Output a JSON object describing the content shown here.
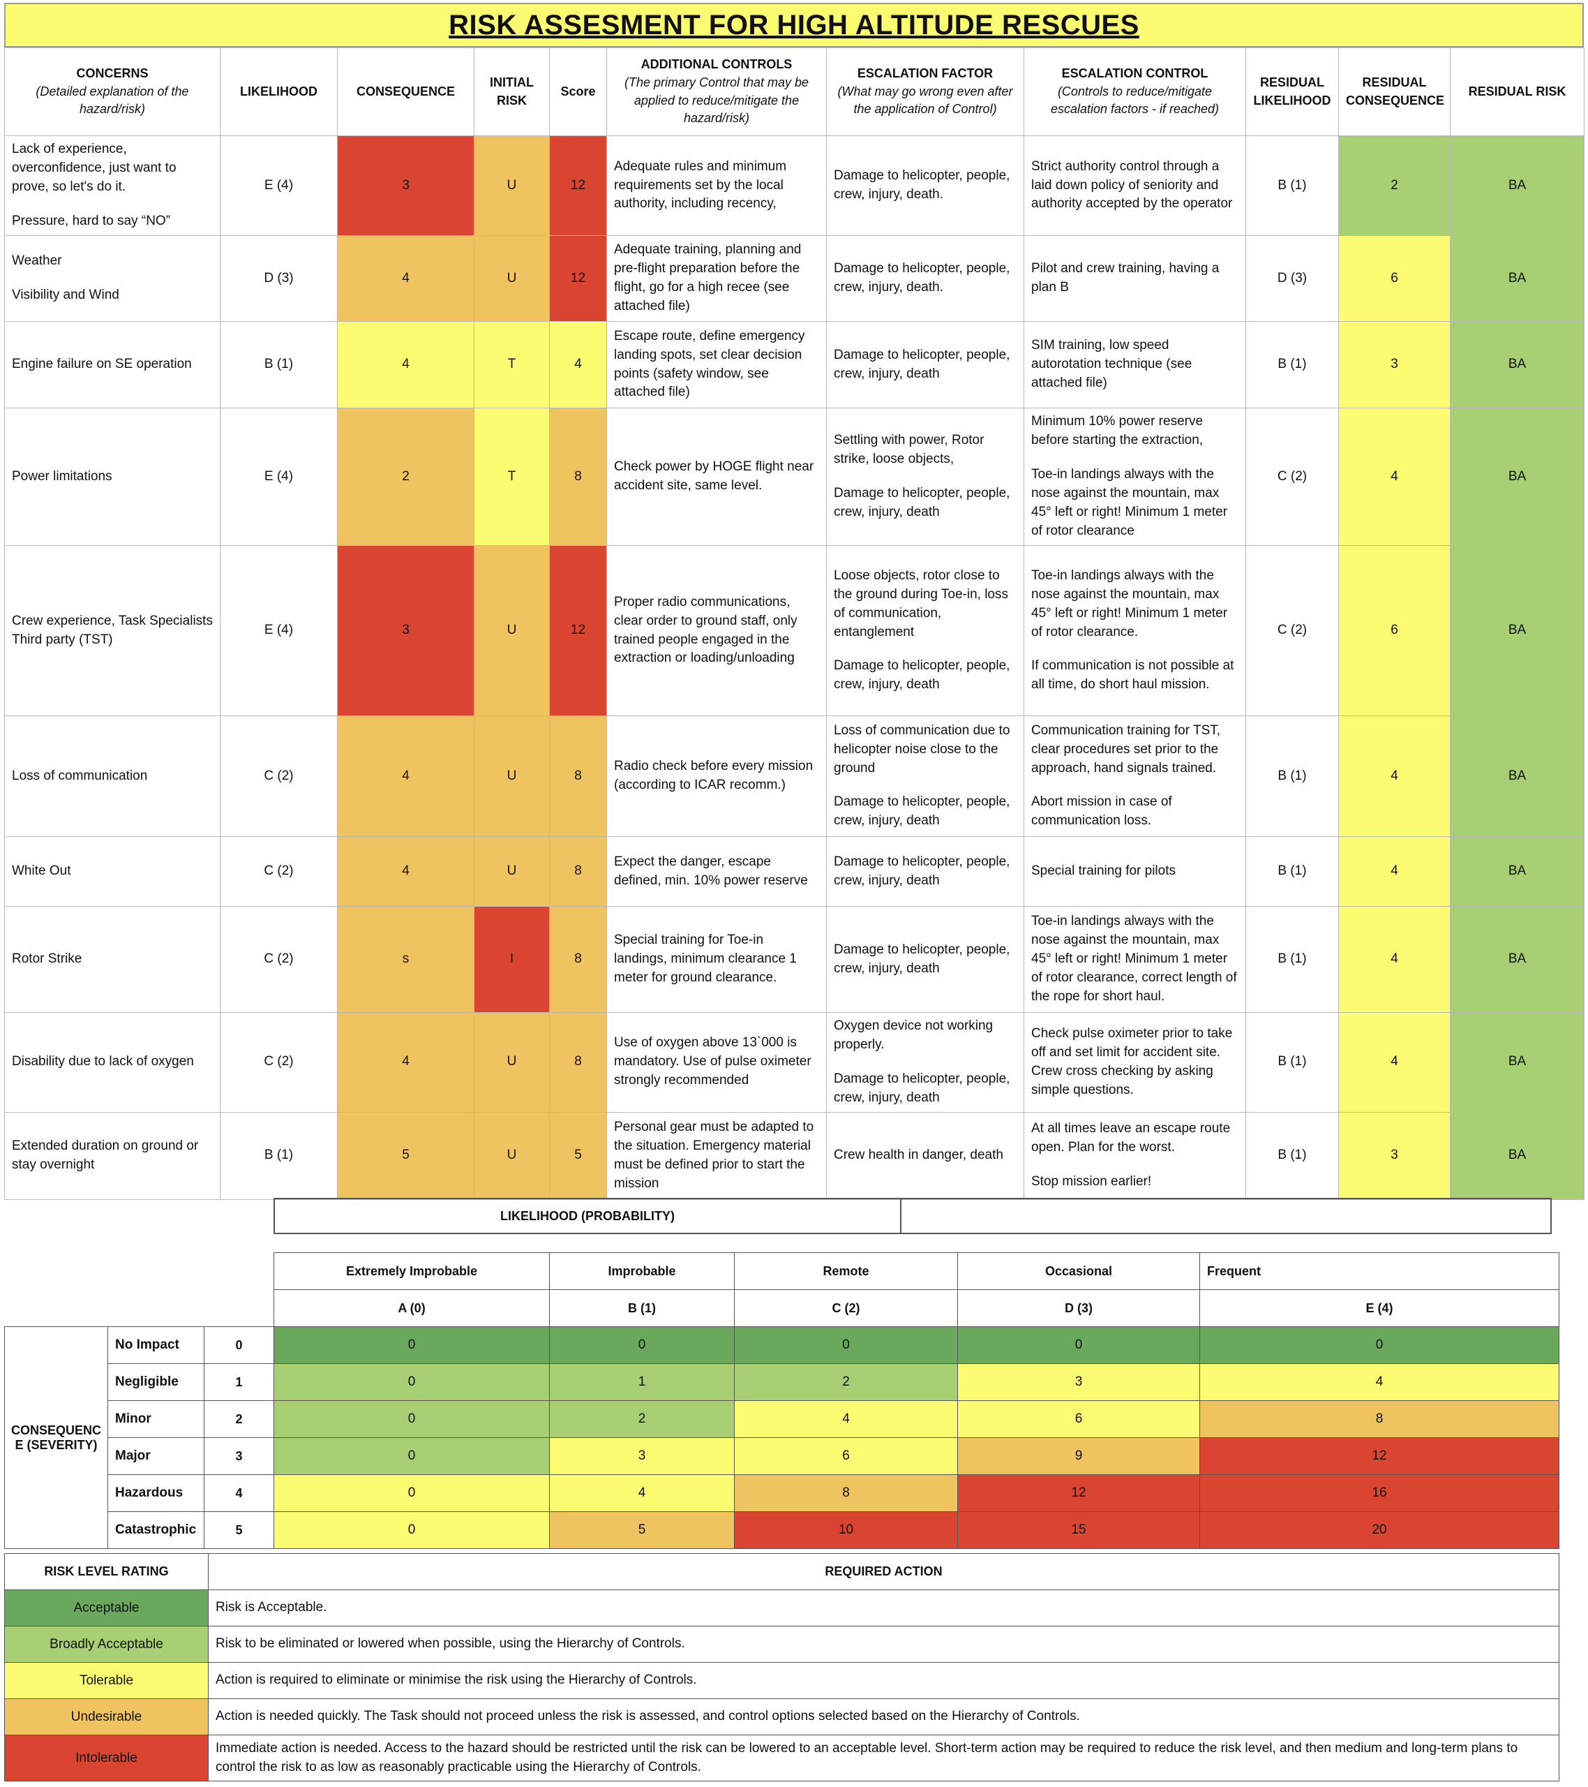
{
  "title": "RISK ASSESMENT FOR HIGH ALTITUDE RESCUES",
  "colors": {
    "intolerable": "#d94530",
    "undesirable": "#efc35f",
    "tolerable": "#fcfc73",
    "broadly_acceptable": "#a8cf73",
    "acceptable": "#6aa95d"
  },
  "headers": {
    "concerns": "CONCERNS",
    "concerns_sub": "(Detailed explanation of the hazard/risk)",
    "likelihood": "LIKELIHOOD",
    "consequence": "CONSEQUENCE",
    "initial_risk": "INITIAL RISK",
    "score": "Score",
    "additional_controls": "ADDITIONAL CONTROLS",
    "additional_controls_sub": "(The primary Control that may be applied to reduce/mitigate the hazard/risk)",
    "escalation_factor": "ESCALATION FACTOR",
    "escalation_factor_sub": "(What may go wrong even after the application of Control)",
    "escalation_control": "ESCALATION CONTROL",
    "escalation_control_sub": "(Controls to reduce/mitigate escalation factors - if reached)",
    "residual_likelihood": "RESIDUAL LIKELIHOOD",
    "residual_consequence": "RESIDUAL CONSEQUENCE",
    "residual_risk": "RESIDUAL RISK"
  },
  "rows": [
    {
      "concern": [
        "Lack of experience, overconfidence, just want to prove, so let's do it.",
        "Pressure, hard to say “NO”"
      ],
      "likelihood": "E (4)",
      "consequence": "3",
      "initial_risk": "U",
      "score": "12",
      "additional_controls": [
        "Adequate rules and minimum requirements set by the local authority, including recency,"
      ],
      "escalation_factor": [
        "Damage to helicopter, people, crew, injury, death."
      ],
      "escalation_control": [
        "Strict authority control through a laid down policy of seniority and authority accepted by the operator"
      ],
      "residual_likelihood": "B (1)",
      "residual_consequence": "2",
      "residual_risk": "BA",
      "colors": {
        "consequence": "red",
        "initial": "orange",
        "score": "red",
        "res_cons": "lgreen",
        "res_risk": "lgreen"
      }
    },
    {
      "concern": [
        "Weather",
        "Visibility and Wind"
      ],
      "likelihood": "D (3)",
      "consequence": "4",
      "initial_risk": "U",
      "score": "12",
      "additional_controls": [
        "Adequate training, planning and pre-flight preparation before the flight, go for a high recee (see attached file)"
      ],
      "escalation_factor": [
        "Damage to helicopter, people, crew, injury, death."
      ],
      "escalation_control": [
        "Pilot and crew training, having a plan B"
      ],
      "residual_likelihood": "D (3)",
      "residual_consequence": "6",
      "residual_risk": "BA",
      "colors": {
        "consequence": "orange",
        "initial": "orange",
        "score": "red",
        "res_cons": "yellow",
        "res_risk": "lgreen"
      }
    },
    {
      "concern": [
        "Engine failure on SE operation"
      ],
      "likelihood": "B (1)",
      "consequence": "4",
      "initial_risk": "T",
      "score": "4",
      "additional_controls": [
        "Escape route, define emergency landing spots, set clear decision points (safety window, see attached file)"
      ],
      "escalation_factor": [
        "Damage to helicopter, people, crew, injury, death"
      ],
      "escalation_control": [
        "SIM training, low speed autorotation technique (see attached file)"
      ],
      "residual_likelihood": "B (1)",
      "residual_consequence": "3",
      "residual_risk": "BA",
      "colors": {
        "consequence": "yellow",
        "initial": "yellow",
        "score": "yellow",
        "res_cons": "yellow",
        "res_risk": "lgreen"
      }
    },
    {
      "concern": [
        "Power limitations"
      ],
      "likelihood": "E (4)",
      "consequence": "2",
      "initial_risk": "T",
      "score": "8",
      "additional_controls": [
        "Check power by HOGE flight near accident site, same level."
      ],
      "escalation_factor": [
        "Settling with power, Rotor strike, loose objects,",
        "Damage to helicopter, people, crew, injury, death"
      ],
      "escalation_control": [
        "Minimum 10% power reserve before starting the extraction,",
        "Toe-in landings always with the nose against the mountain, max 45° left or right! Minimum 1 meter of rotor clearance"
      ],
      "residual_likelihood": "C (2)",
      "residual_consequence": "4",
      "residual_risk": "BA",
      "colors": {
        "consequence": "orange",
        "initial": "yellow",
        "score": "orange",
        "res_cons": "yellow",
        "res_risk": "lgreen"
      }
    },
    {
      "concern": [
        "Crew experience, Task Specialists Third party (TST)"
      ],
      "likelihood": "E (4)",
      "consequence": "3",
      "initial_risk": "U",
      "score": "12",
      "additional_controls": [
        "Proper radio communications, clear order to ground staff, only trained people engaged in the extraction or loading/unloading"
      ],
      "escalation_factor": [
        "Loose objects, rotor close to the ground during Toe-in, loss of communication, entanglement",
        "Damage to helicopter, people, crew, injury, death"
      ],
      "escalation_control": [
        "Toe-in landings always with the nose against the mountain, max 45° left or right! Minimum 1 meter of rotor clearance.",
        "If communication is not possible at all time, do short haul mission."
      ],
      "residual_likelihood": "C (2)",
      "residual_consequence": "6",
      "residual_risk": "BA",
      "colors": {
        "consequence": "red",
        "initial": "orange",
        "score": "red",
        "res_cons": "yellow",
        "res_risk": "lgreen"
      }
    },
    {
      "concern": [
        "Loss of communication"
      ],
      "likelihood": "C (2)",
      "consequence": "4",
      "initial_risk": "U",
      "score": "8",
      "additional_controls": [
        "Radio check before every mission (according to ICAR recomm.)"
      ],
      "escalation_factor": [
        "Loss of communication due to helicopter noise close to the ground",
        "Damage to helicopter, people, crew, injury, death"
      ],
      "escalation_control": [
        "Communication training for TST, clear procedures set prior to the approach, hand signals trained.",
        "Abort  mission in case of communication loss."
      ],
      "residual_likelihood": "B (1)",
      "residual_consequence": "4",
      "residual_risk": "BA",
      "colors": {
        "consequence": "orange",
        "initial": "orange",
        "score": "orange",
        "res_cons": "yellow",
        "res_risk": "lgreen"
      }
    },
    {
      "concern": [
        "White Out"
      ],
      "likelihood": "C (2)",
      "consequence": "4",
      "initial_risk": "U",
      "score": "8",
      "additional_controls": [
        "Expect the danger, escape defined, min. 10% power reserve"
      ],
      "escalation_factor": [
        "Damage to helicopter, people, crew, injury, death"
      ],
      "escalation_control": [
        "Special training for pilots"
      ],
      "residual_likelihood": "B (1)",
      "residual_consequence": "4",
      "residual_risk": "BA",
      "colors": {
        "consequence": "orange",
        "initial": "orange",
        "score": "orange",
        "res_cons": "yellow",
        "res_risk": "lgreen"
      }
    },
    {
      "concern": [
        "Rotor Strike"
      ],
      "likelihood": "C (2)",
      "consequence": "s",
      "initial_risk": "I",
      "score": "8",
      "additional_controls": [
        "Special training for Toe-in landings, minimum clearance 1 meter for ground clearance."
      ],
      "escalation_factor": [
        "Damage to helicopter, people, crew, injury, death"
      ],
      "escalation_control": [
        "Toe-in landings always with the nose against the mountain, max 45° left or right! Minimum 1 meter of rotor clearance, correct length of the rope for short haul."
      ],
      "residual_likelihood": "B (1)",
      "residual_consequence": "4",
      "residual_risk": "BA",
      "colors": {
        "consequence": "orange",
        "initial": "red",
        "score": "orange",
        "res_cons": "yellow",
        "res_risk": "lgreen"
      }
    },
    {
      "concern": [
        "Disability due to lack of oxygen"
      ],
      "likelihood": "C (2)",
      "consequence": "4",
      "initial_risk": "U",
      "score": "8",
      "additional_controls": [
        "Use of oxygen above 13`000 is mandatory. Use of pulse oximeter strongly recommended"
      ],
      "escalation_factor": [
        "Oxygen device not working properly.",
        "Damage to helicopter, people, crew, injury, death"
      ],
      "escalation_control": [
        "Check pulse oximeter prior to take off and set limit for accident site. Crew cross checking by asking simple questions."
      ],
      "residual_likelihood": "B (1)",
      "residual_consequence": "4",
      "residual_risk": "BA",
      "colors": {
        "consequence": "orange",
        "initial": "orange",
        "score": "orange",
        "res_cons": "yellow",
        "res_risk": "lgreen"
      }
    },
    {
      "concern": [
        "Extended duration on ground or stay overnight"
      ],
      "likelihood": "B (1)",
      "consequence": "5",
      "initial_risk": "U",
      "score": "5",
      "additional_controls": [
        "Personal gear must be adapted to the situation. Emergency material must be defined prior to start the mission"
      ],
      "escalation_factor": [
        "Crew health in danger, death"
      ],
      "escalation_control": [
        "At all times leave an escape route open. Plan for the worst.",
        "Stop mission earlier!"
      ],
      "residual_likelihood": "B (1)",
      "residual_consequence": "3",
      "residual_risk": "BA",
      "colors": {
        "consequence": "orange",
        "initial": "orange",
        "score": "orange",
        "res_cons": "yellow",
        "res_risk": "lgreen"
      }
    }
  ],
  "likelihood_title": "LIKELIHOOD (PROBABILITY)",
  "matrix": {
    "columns": [
      {
        "name": "Extremely Improbable",
        "code": "A (0)"
      },
      {
        "name": "Improbable",
        "code": "B (1)"
      },
      {
        "name": "Remote",
        "code": "C (2)"
      },
      {
        "name": "Occasional",
        "code": "D (3)"
      },
      {
        "name": "Frequent",
        "code": "E (4)"
      }
    ],
    "severity_label": "CONSEQUENC E (SEVERITY)",
    "rows": [
      {
        "label": "No Impact",
        "level": "0",
        "values": [
          "0",
          "0",
          "0",
          "0",
          "0"
        ],
        "colors": [
          "dgreen",
          "dgreen",
          "dgreen",
          "dgreen",
          "dgreen"
        ]
      },
      {
        "label": "Negligible",
        "level": "1",
        "values": [
          "0",
          "1",
          "2",
          "3",
          "4"
        ],
        "colors": [
          "lgreen",
          "lgreen",
          "lgreen",
          "yellow",
          "yellow"
        ]
      },
      {
        "label": "Minor",
        "level": "2",
        "values": [
          "0",
          "2",
          "4",
          "6",
          "8"
        ],
        "colors": [
          "lgreen",
          "lgreen",
          "yellow",
          "yellow",
          "orange"
        ]
      },
      {
        "label": "Major",
        "level": "3",
        "values": [
          "0",
          "3",
          "6",
          "9",
          "12"
        ],
        "colors": [
          "lgreen",
          "yellow",
          "yellow",
          "orange",
          "red"
        ]
      },
      {
        "label": "Hazardous",
        "level": "4",
        "values": [
          "0",
          "4",
          "8",
          "12",
          "16"
        ],
        "colors": [
          "yellow",
          "yellow",
          "orange",
          "red",
          "red"
        ]
      },
      {
        "label": "Catastrophic",
        "level": "5",
        "values": [
          "0",
          "5",
          "10",
          "15",
          "20"
        ],
        "colors": [
          "yellow",
          "orange",
          "red",
          "red",
          "red"
        ]
      }
    ]
  },
  "legend": {
    "rating_header": "RISK LEVEL RATING",
    "action_header": "REQUIRED ACTION",
    "items": [
      {
        "rating": "Acceptable",
        "action": "Risk is Acceptable.",
        "color": "dgreen"
      },
      {
        "rating": "Broadly Acceptable",
        "action": "Risk to be eliminated or lowered when possible, using the Hierarchy of Controls.",
        "color": "lgreen"
      },
      {
        "rating": "Tolerable",
        "action": "Action is required to eliminate or minimise the risk using the Hierarchy of Controls.",
        "color": "yellow"
      },
      {
        "rating": "Undesirable",
        "action": "Action is needed quickly. The Task should not proceed unless the risk is assessed, and control options selected based on the Hierarchy of Controls.",
        "color": "orange"
      },
      {
        "rating": "Intolerable",
        "action": "Immediate action is needed. Access to the hazard should be restricted until the risk can be lowered to an acceptable level. Short-term action may be required to reduce the risk level, and then medium and long-term plans to control the risk to as low as reasonably practicable using the Hierarchy of Controls.",
        "color": "red"
      }
    ]
  }
}
